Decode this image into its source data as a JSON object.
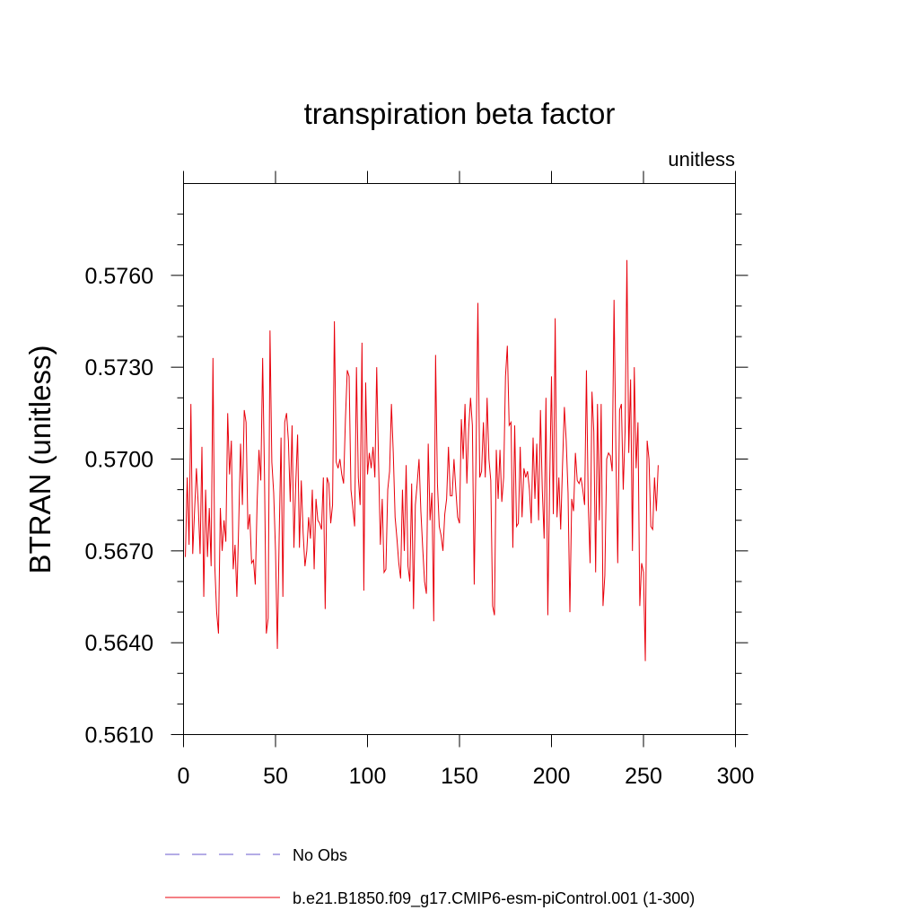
{
  "chart_data": {
    "type": "line",
    "title": "transpiration beta factor",
    "units_label": "unitless",
    "ylabel": "BTRAN  (unitless)",
    "xlabel": "",
    "xlim": [
      0,
      300
    ],
    "ylim": [
      0.561,
      0.579
    ],
    "x_ticks": [
      0,
      50,
      100,
      150,
      200,
      250,
      300
    ],
    "y_ticks": [
      0.561,
      0.564,
      0.567,
      0.57,
      0.573,
      0.576
    ],
    "y_tick_labels": [
      "0.5610",
      "0.5640",
      "0.5670",
      "0.5700",
      "0.5730",
      "0.5760"
    ],
    "grid": false,
    "legend_position": "bottom-left",
    "series": [
      {
        "name": "No Obs",
        "color": "#6a5acd",
        "dashed": true,
        "values": []
      },
      {
        "name": "b.e21.B1850.f09_g17.CMIP6-esm-piControl.001 (1-300)",
        "color": "#e8000b",
        "dashed": false,
        "x_start": 1,
        "values": [
          0.5668,
          0.5694,
          0.5672,
          0.5718,
          0.5669,
          0.5683,
          0.5697,
          0.5685,
          0.5669,
          0.5704,
          0.5655,
          0.569,
          0.5668,
          0.5684,
          0.5665,
          0.5733,
          0.5665,
          0.565,
          0.5643,
          0.5684,
          0.567,
          0.568,
          0.5673,
          0.5715,
          0.5695,
          0.5706,
          0.5664,
          0.5672,
          0.5655,
          0.5679,
          0.5705,
          0.5685,
          0.5716,
          0.5712,
          0.5677,
          0.5682,
          0.5666,
          0.5667,
          0.5659,
          0.5686,
          0.5703,
          0.5693,
          0.5733,
          0.5695,
          0.5643,
          0.5648,
          0.5742,
          0.5699,
          0.5689,
          0.567,
          0.5638,
          0.5675,
          0.5707,
          0.5655,
          0.5712,
          0.5715,
          0.5706,
          0.5686,
          0.5711,
          0.5671,
          0.5692,
          0.5708,
          0.5671,
          0.5693,
          0.5676,
          0.5665,
          0.567,
          0.5681,
          0.5674,
          0.569,
          0.5664,
          0.5687,
          0.568,
          0.5679,
          0.5677,
          0.5694,
          0.5651,
          0.5694,
          0.5692,
          0.5679,
          0.5685,
          0.5745,
          0.5699,
          0.5697,
          0.57,
          0.5695,
          0.5692,
          0.5713,
          0.5729,
          0.5727,
          0.569,
          0.5684,
          0.5678,
          0.573,
          0.5694,
          0.5685,
          0.5738,
          0.5657,
          0.5725,
          0.5695,
          0.5702,
          0.5697,
          0.5704,
          0.5694,
          0.573,
          0.5699,
          0.5672,
          0.5687,
          0.5663,
          0.5664,
          0.569,
          0.5696,
          0.5718,
          0.5702,
          0.5681,
          0.5674,
          0.5666,
          0.5661,
          0.569,
          0.567,
          0.5698,
          0.5665,
          0.566,
          0.5692,
          0.5651,
          0.5685,
          0.5692,
          0.57,
          0.5683,
          0.5671,
          0.566,
          0.5656,
          0.5705,
          0.568,
          0.5689,
          0.5647,
          0.5734,
          0.5692,
          0.5678,
          0.5675,
          0.567,
          0.5682,
          0.5687,
          0.5704,
          0.5688,
          0.5688,
          0.57,
          0.569,
          0.5681,
          0.5679,
          0.5713,
          0.57,
          0.5718,
          0.5692,
          0.571,
          0.572,
          0.5711,
          0.5659,
          0.5702,
          0.5751,
          0.5694,
          0.5696,
          0.5712,
          0.5694,
          0.572,
          0.57,
          0.5693,
          0.5652,
          0.5649,
          0.5703,
          0.5687,
          0.5703,
          0.5686,
          0.5694,
          0.5727,
          0.5737,
          0.5711,
          0.5712,
          0.5671,
          0.5711,
          0.5678,
          0.5679,
          0.5704,
          0.5681,
          0.5697,
          0.5694,
          0.5696,
          0.569,
          0.5679,
          0.5707,
          0.5687,
          0.5705,
          0.568,
          0.5716,
          0.569,
          0.5674,
          0.572,
          0.5649,
          0.5692,
          0.5727,
          0.5682,
          0.5746,
          0.5681,
          0.5694,
          0.5677,
          0.5698,
          0.5717,
          0.5706,
          0.5689,
          0.565,
          0.5687,
          0.5683,
          0.5702,
          0.5693,
          0.5692,
          0.5694,
          0.569,
          0.5685,
          0.5729,
          0.5685,
          0.5666,
          0.5722,
          0.5709,
          0.5663,
          0.5718,
          0.568,
          0.5718,
          0.5652,
          0.5662,
          0.57,
          0.5702,
          0.5701,
          0.5696,
          0.5752,
          0.5703,
          0.5666,
          0.5716,
          0.5718,
          0.569,
          0.5709,
          0.5765,
          0.5702,
          0.5726,
          0.567,
          0.573,
          0.5697,
          0.5712,
          0.5652,
          0.5666,
          0.5663,
          0.5634,
          0.5706,
          0.57,
          0.5678,
          0.5677,
          0.5694,
          0.5683,
          0.5698
        ]
      }
    ]
  }
}
